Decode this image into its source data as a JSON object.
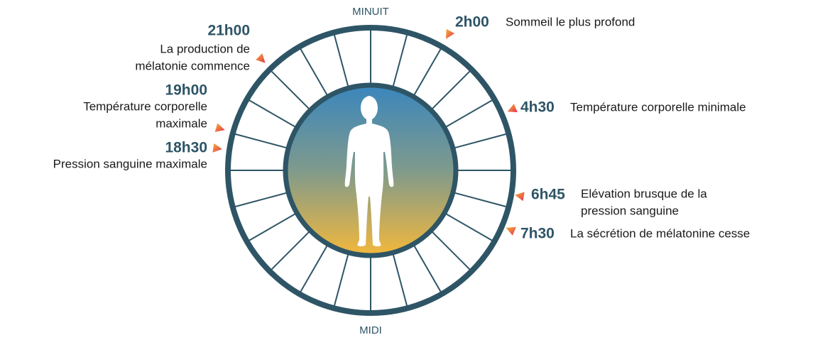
{
  "top_label": "MINUIT",
  "bottom_label": "MIDI",
  "events": [
    {
      "time": "2h00",
      "lines": [
        "Sommeil le plus profond"
      ]
    },
    {
      "time": "4h30",
      "lines": [
        "Température corporelle minimale"
      ]
    },
    {
      "time": "6h45",
      "lines": [
        "Elévation brusque de la",
        "pression sanguine"
      ]
    },
    {
      "time": "7h30",
      "lines": [
        "La sécrétion de mélatonine cesse"
      ]
    },
    {
      "time": "21h00",
      "lines": [
        "La production de",
        "mélatonie commence"
      ]
    },
    {
      "time": "19h00",
      "lines": [
        "Température corporelle",
        "maximale"
      ]
    },
    {
      "time": "18h30",
      "lines": [
        "Pression sanguine maximale"
      ]
    }
  ]
}
